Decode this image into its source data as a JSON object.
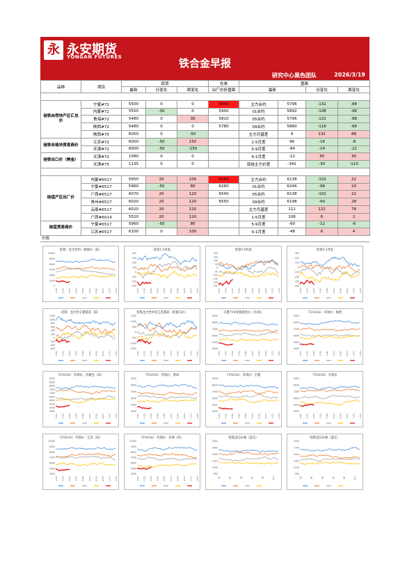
{
  "brand": {
    "name_cn": "永安期货",
    "name_en": "YONGAN FUTURES",
    "logo_glyph": "永"
  },
  "title": "铁合金早报",
  "team": "研究中心黑色团队",
  "date": "2026/3/19",
  "table": {
    "headers": {
      "product": "品种",
      "item": "项目",
      "spot": "现货",
      "warrant": "仓单",
      "futures": "盘面",
      "latest": "最新",
      "daily": "日变化",
      "weekly": "周变化",
      "warrant_sub": "出厂价折盘面"
    },
    "groups": [
      {
        "label": "硅铁自然块产区汇总价",
        "rows": [
          {
            "item": "宁夏#72",
            "spot": "5500",
            "d": "0",
            "w": "0",
            "warrant": "5800",
            "fut": "主力合约",
            "fl": "5796",
            "fd": "-132",
            "fw": "-88",
            "wc": "sred",
            "fdc": "green",
            "fwc": "green"
          },
          {
            "item": "内蒙#72",
            "spot": "5550",
            "d": "-30",
            "w": "0",
            "warrant": "5900",
            "fut": "01合约",
            "fl": "5892",
            "fd": "-148",
            "fw": "-96",
            "dc": "green",
            "fdc": "green",
            "fwc": "green"
          },
          {
            "item": "青海#72",
            "spot": "5480",
            "d": "0",
            "w": "30",
            "warrant": "5810",
            "fut": "05合约",
            "fl": "5796",
            "fd": "-132",
            "fw": "-88",
            "wwc": "red",
            "fdc": "green",
            "fwc": "green"
          },
          {
            "item": "陕西#72",
            "spot": "5480",
            "d": "0",
            "w": "0",
            "warrant": "5780",
            "fut": "09合约",
            "fl": "5880",
            "fd": "-118",
            "fw": "-66",
            "fdc": "green",
            "fwc": "green"
          },
          {
            "item": "陕西#75",
            "spot": "6050",
            "d": "0",
            "w": "-50",
            "warrant": "",
            "fut": "主力月基差",
            "fl": "4",
            "fd": "132",
            "fw": "88",
            "wwc": "green",
            "fdc": "red",
            "fwc": "red"
          }
        ]
      },
      {
        "label": "硅铁合格块贸易商价",
        "rows": [
          {
            "item": "江苏#72",
            "spot": "6000",
            "d": "-50",
            "w": "150",
            "warrant": "",
            "fut": "1-5月差",
            "fl": "96",
            "fd": "-16",
            "fw": "-8",
            "dc": "green",
            "wwc": "red",
            "fdc": "green",
            "fwc": "green"
          },
          {
            "item": "天津#72",
            "spot": "6000",
            "d": "-50",
            "w": "-150",
            "warrant": "",
            "fut": "5-9月差",
            "fl": "-84",
            "fd": "-14",
            "fw": "-22",
            "dc": "green",
            "wwc": "green",
            "fdc": "green",
            "fwc": "green"
          }
        ]
      },
      {
        "label": "硅铁出口价（美金）",
        "rows": [
          {
            "item": "天津#72",
            "spot": "1080",
            "d": "0",
            "w": "0",
            "warrant": "",
            "fut": "9-1月差",
            "fl": "-12",
            "fd": "30",
            "fw": "30",
            "fdc": "red",
            "fwc": "red"
          },
          {
            "item": "天津#75",
            "spot": "1135",
            "d": "0",
            "w": "0",
            "warrant": "",
            "fut": "双硅主力价差",
            "fl": "-342",
            "fd": "-30",
            "fw": "-110",
            "fdc": "green",
            "fwc": "green"
          }
        ]
      },
      {
        "label": "硅锰产区出厂价",
        "rows": [
          {
            "item": "内蒙#6517",
            "spot": "5950",
            "d": "20",
            "w": "100",
            "warrant": "6250",
            "fut": "主力合约",
            "fl": "6138",
            "fd": "-102",
            "fw": "22",
            "dc": "red",
            "wwc": "red",
            "wc": "sred",
            "fdc": "green",
            "fwc": "red"
          },
          {
            "item": "宁夏#6517",
            "spot": "5960",
            "d": "-50",
            "w": "80",
            "warrant": "6260",
            "fut": "01合约",
            "fl": "6246",
            "fd": "-96",
            "fw": "24",
            "dc": "green",
            "wwc": "red",
            "fdc": "green",
            "fwc": "red"
          },
          {
            "item": "广西#6517",
            "spot": "6070",
            "d": "20",
            "w": "120",
            "warrant": "6540",
            "fut": "05合约",
            "fl": "6138",
            "fd": "-102",
            "fw": "22",
            "dc": "red",
            "wwc": "red",
            "fdc": "green",
            "fwc": "red"
          },
          {
            "item": "贵州#6517",
            "spot": "6020",
            "d": "20",
            "w": "120",
            "warrant": "6550",
            "fut": "09合约",
            "fl": "6198",
            "fd": "-90",
            "fw": "28",
            "dc": "red",
            "wwc": "red",
            "fdc": "green",
            "fwc": "red"
          },
          {
            "item": "云南#6517",
            "spot": "6020",
            "d": "20",
            "w": "120",
            "warrant": "",
            "fut": "主力月基差",
            "fl": "112",
            "fd": "122",
            "fw": "78",
            "dc": "red",
            "wwc": "red",
            "fdc": "red",
            "fwc": "red"
          },
          {
            "item": "广西#6014",
            "spot": "5520",
            "d": "20",
            "w": "120",
            "warrant": "",
            "fut": "1-5月差",
            "fl": "108",
            "fd": "6",
            "fw": "2",
            "dc": "red",
            "wwc": "red",
            "fdc": "red",
            "fwc": "red"
          }
        ]
      },
      {
        "label": "硅锰贸易商价",
        "rows": [
          {
            "item": "宁夏#6517",
            "spot": "5960",
            "d": "-50",
            "w": "80",
            "warrant": "",
            "fut": "5-9月差",
            "fl": "-60",
            "fd": "-12",
            "fw": "-6",
            "dc": "green",
            "wwc": "red",
            "fdc": "green",
            "fwc": "green"
          },
          {
            "item": "江苏#6517",
            "spot": "6100",
            "d": "0",
            "w": "100",
            "warrant": "",
            "fut": "9-1月差",
            "fl": "-48",
            "fd": "6",
            "fw": "4",
            "wwc": "red",
            "fdc": "red",
            "fwc": "red"
          }
        ]
      }
    ]
  },
  "charts_label": "价格",
  "series_colors": [
    "#4a90d9",
    "#ed7d31",
    "#a5a5a5",
    "#ffc000",
    "#e00000"
  ],
  "charts": [
    {
      "title": "硅铁：主力合约：收盘价（日）",
      "yticks": [
        "10000",
        "8000",
        "6000",
        "5000",
        "4000",
        "2000",
        "0"
      ]
    },
    {
      "title": "硅铁1-5月差",
      "yticks": [
        "400",
        "300",
        "200",
        "100",
        "0",
        "-100",
        "-200",
        "-300"
      ]
    },
    {
      "title": "硅铁5-9月差",
      "yticks": [
        "200",
        "150",
        "100",
        "50",
        "0",
        "-50",
        "-100",
        "-150",
        "-200",
        "-250"
      ]
    },
    {
      "title": "硅铁9-1月差",
      "yticks": [
        "300",
        "200",
        "100",
        "0",
        "-100",
        "-200",
        "-300",
        "-400"
      ]
    },
    {
      "title": "硅铁：主力月宁夏基差（日）",
      "yticks": [
        "1200",
        "1000",
        "800",
        "600",
        "400",
        "200",
        "0",
        "-200",
        "-400",
        "-600"
      ]
    },
    {
      "title": "硅铁主力合约对江苏基差（折盘口价）",
      "yticks": [
        "1500",
        "1000",
        "500",
        "0",
        "-500",
        "-1000",
        "-1500"
      ]
    },
    {
      "title": "宁夏75#硅铁现金价（元/吨）",
      "yticks": [
        "9000",
        "8000",
        "7000",
        "6000",
        "5000",
        "4000"
      ]
    },
    {
      "title": "72%FeSi：市场价：陕西",
      "yticks": [
        "9000",
        "8000",
        "7000",
        "6000",
        "5000",
        "4000"
      ]
    },
    {
      "title": "72%FeSi：市场价：内蒙古（日）",
      "yticks": [
        "9000",
        "8500",
        "8000",
        "7500",
        "7000",
        "6500",
        "6000",
        "5500",
        "5000",
        "4500"
      ]
    },
    {
      "title": "72%FeSi：市场价：青海",
      "yticks": [
        "9000",
        "8000",
        "7000",
        "6000",
        "5000",
        "4000"
      ]
    },
    {
      "title": "72%FeSi：市场价：宁夏",
      "yticks": [
        "9000",
        "8000",
        "7000",
        "6000",
        "5000",
        "4000"
      ]
    },
    {
      "title": "75%FeSi：市场价",
      "yticks": [
        "9000",
        "8000",
        "7000",
        "6000",
        "5000",
        "4000"
      ]
    },
    {
      "title": "72%FeSi：市场价：江苏（日）",
      "yticks": [
        "10000",
        "9000",
        "8000",
        "7000",
        "6000",
        "5000",
        "4000"
      ]
    },
    {
      "title": "72%FeSi：市场价：天津（日）",
      "yticks": [
        "10000",
        "9000",
        "8000",
        "7000",
        "6000",
        "5000",
        "4000"
      ]
    },
    {
      "title": "硅铁出口价格（美元）",
      "yticks": [
        "1800",
        "1600",
        "1400",
        "1200",
        "1000",
        "800"
      ]
    },
    {
      "title": "硅铁出口价格（美元）",
      "yticks": [
        "1900",
        "1700",
        "1500",
        "1300",
        "1100",
        "900"
      ]
    }
  ],
  "xticks": [
    "01/01",
    "01/21",
    "02/10",
    "03/02",
    "03/22",
    "04/11",
    "05/01",
    "05/21",
    "06/10",
    "06/30",
    "07/20",
    "08/09",
    "08/29",
    "09/18",
    "10/08",
    "10/28",
    "11/17",
    "12/07",
    "12/27"
  ],
  "xticks_month": [
    "1月",
    "2月",
    "3月",
    "4月",
    "5月",
    "6月",
    "7月",
    "8月",
    "9月",
    "10月",
    "11月",
    "12月"
  ]
}
